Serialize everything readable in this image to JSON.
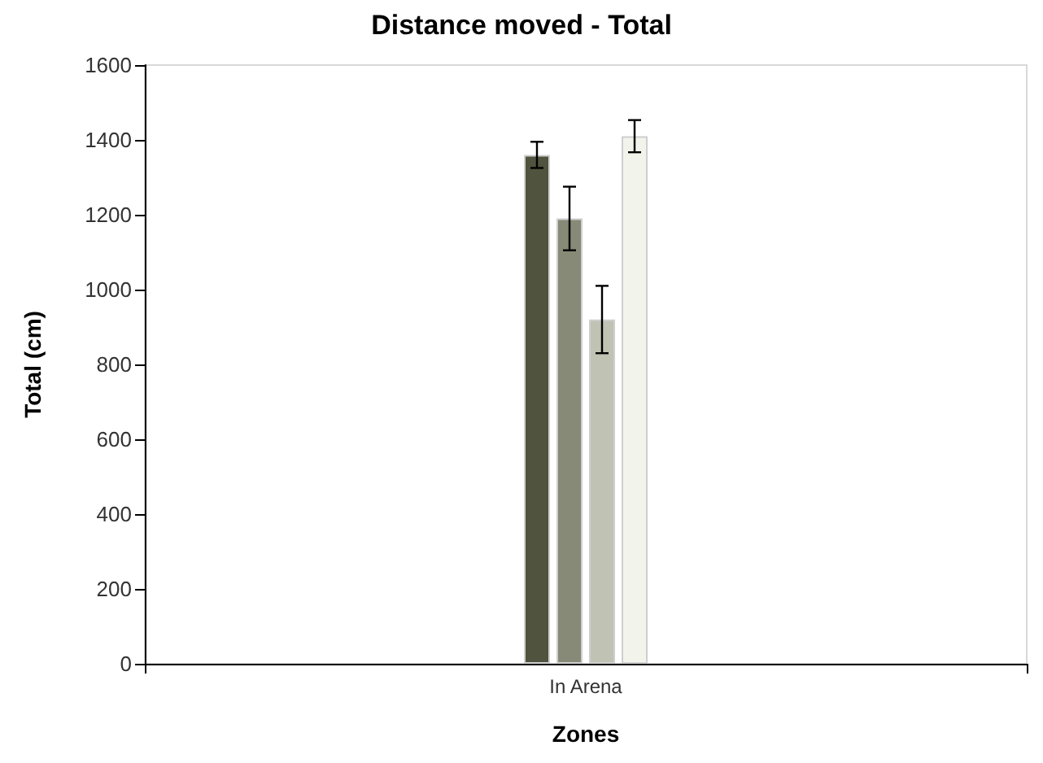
{
  "chart_data": {
    "type": "bar",
    "title": "Distance moved - Total",
    "xlabel": "Zones",
    "ylabel": "Total (cm)",
    "categories": [
      "In Arena"
    ],
    "series": [
      {
        "color": "#50533d",
        "values": [
          1360
        ],
        "errors": [
          35
        ]
      },
      {
        "color": "#878a76",
        "values": [
          1190
        ],
        "errors": [
          85
        ]
      },
      {
        "color": "#c0c2b4",
        "values": [
          920
        ],
        "errors": [
          90
        ]
      },
      {
        "color": "#f2f4ec",
        "values": [
          1410
        ],
        "errors": [
          43
        ]
      }
    ],
    "ylim": [
      0,
      1600
    ],
    "yticks": [
      0,
      200,
      400,
      600,
      800,
      1000,
      1200,
      1400,
      1600
    ],
    "grid": false
  }
}
